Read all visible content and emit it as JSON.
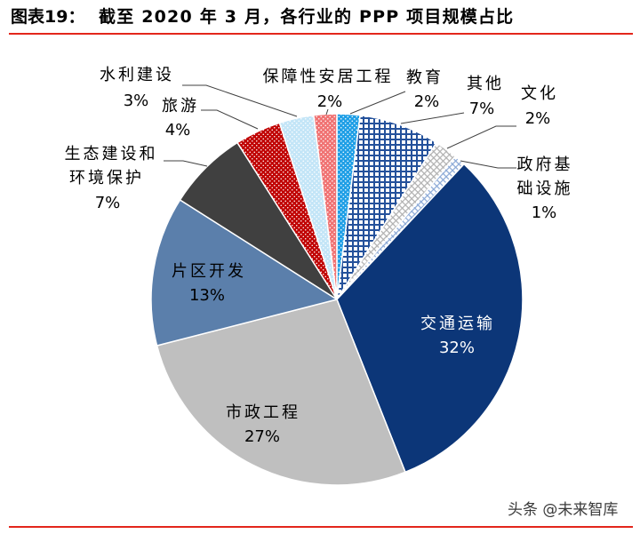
{
  "header": {
    "figure_label": "图表19："
  },
  "chart_data": {
    "type": "pie",
    "title": "截至 2020 年 3 月，各行业的 PPP 项目规模占比",
    "slices": [
      {
        "label_lines": [
          "教育"
        ],
        "value": 2,
        "value_label": "2%",
        "color": "#1f9fe6"
      },
      {
        "label_lines": [
          "其他"
        ],
        "value": 7,
        "value_label": "7%",
        "color": "#24519b"
      },
      {
        "label_lines": [
          "文化"
        ],
        "value": 2,
        "value_label": "2%",
        "color": "#b0b0b0"
      },
      {
        "label_lines": [
          "政府基",
          "础设施"
        ],
        "value": 1,
        "value_label": "1%",
        "color": "#8aa8d6"
      },
      {
        "label_lines": [
          "交通运输"
        ],
        "value": 32,
        "value_label": "32%",
        "color": "#0c3678"
      },
      {
        "label_lines": [
          "市政工程"
        ],
        "value": 27,
        "value_label": "27%",
        "color": "#bfbfbf"
      },
      {
        "label_lines": [
          "片区开发"
        ],
        "value": 13,
        "value_label": "13%",
        "color": "#5b7fab"
      },
      {
        "label_lines": [
          "生态建设和",
          "环境保护"
        ],
        "value": 7,
        "value_label": "7%",
        "color": "#404040"
      },
      {
        "label_lines": [
          "旅游"
        ],
        "value": 4,
        "value_label": "4%",
        "color": "#c00000"
      },
      {
        "label_lines": [
          "水利建设"
        ],
        "value": 3,
        "value_label": "3%",
        "color": "#c3e5f7"
      },
      {
        "label_lines": [
          "保障性安居工程"
        ],
        "value": 2,
        "value_label": "2%",
        "color": "#f07373"
      }
    ]
  },
  "footer": {
    "watermark": "头条 @未来智库"
  }
}
